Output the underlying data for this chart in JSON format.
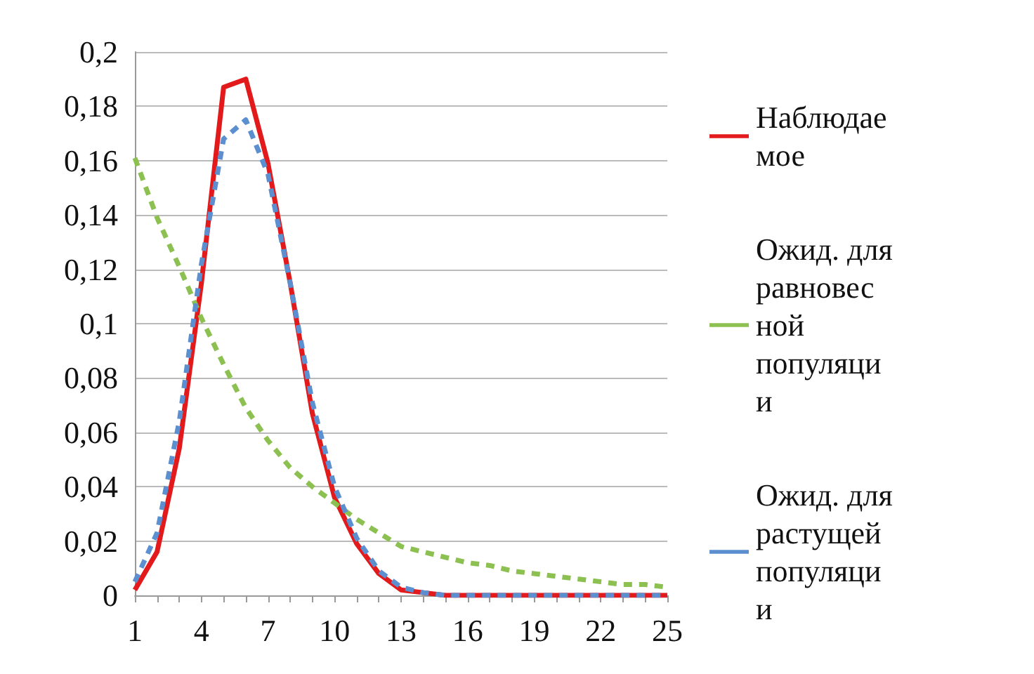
{
  "chart_data": {
    "type": "line",
    "categories": [
      "1",
      null,
      null,
      "4",
      null,
      null,
      "7",
      null,
      null,
      "10",
      null,
      null,
      "13",
      null,
      null,
      "16",
      null,
      null,
      "19",
      null,
      null,
      "22",
      null,
      null,
      "25"
    ],
    "series": [
      {
        "name": "Наблюдаемое",
        "color": "#e31a1c",
        "line_style": "solid",
        "values": [
          0.002,
          0.016,
          0.054,
          0.115,
          0.187,
          0.19,
          0.159,
          0.115,
          0.067,
          0.036,
          0.019,
          0.008,
          0.002,
          0.001,
          0,
          0,
          0,
          0,
          0,
          0,
          0,
          0,
          0,
          0,
          0
        ]
      },
      {
        "name": "Ожид. для равновесной популяции",
        "color": "#8cc152",
        "line_style": "dashed",
        "values": [
          0.161,
          0.139,
          0.121,
          0.102,
          0.085,
          0.069,
          0.057,
          0.047,
          0.04,
          0.034,
          0.028,
          0.023,
          0.018,
          0.016,
          0.014,
          0.012,
          0.011,
          0.009,
          0.008,
          0.007,
          0.006,
          0.005,
          0.004,
          0.004,
          0.003
        ]
      },
      {
        "name": "Ожид. для растущей популяции",
        "color": "#5b8fd0",
        "line_style": "dashed",
        "values": [
          0.005,
          0.023,
          0.064,
          0.122,
          0.168,
          0.175,
          0.155,
          0.115,
          0.071,
          0.04,
          0.021,
          0.009,
          0.003,
          0.001,
          0,
          0,
          0,
          0,
          0,
          0,
          0,
          0,
          0,
          0,
          0
        ]
      }
    ],
    "ylim": [
      0,
      0.2
    ],
    "yticks": [
      {
        "value": 0,
        "label": "0"
      },
      {
        "value": 0.02,
        "label": "0,02"
      },
      {
        "value": 0.04,
        "label": "0,04"
      },
      {
        "value": 0.06,
        "label": "0,06"
      },
      {
        "value": 0.08,
        "label": "0,08"
      },
      {
        "value": 0.1,
        "label": "0,1"
      },
      {
        "value": 0.12,
        "label": "0,12"
      },
      {
        "value": 0.14,
        "label": "0,14"
      },
      {
        "value": 0.16,
        "label": "0,16"
      },
      {
        "value": 0.18,
        "label": "0,18"
      },
      {
        "value": 0.2,
        "label": "0,2"
      }
    ],
    "grid": "y",
    "legend": "right",
    "marker": "none"
  }
}
